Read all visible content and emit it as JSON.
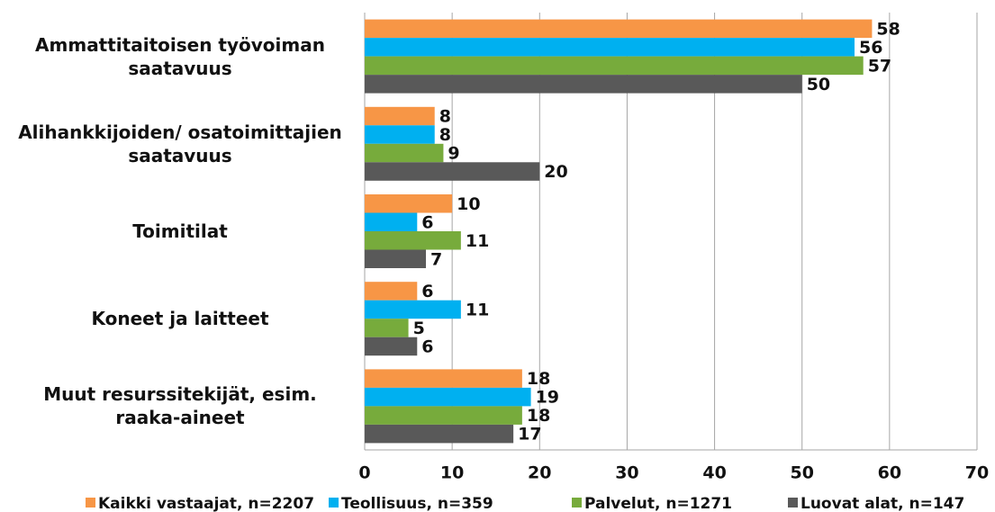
{
  "chart_data": {
    "type": "bar",
    "orientation": "horizontal",
    "categories": [
      "Ammattitaitoisen työvoiman saatavuus",
      "Alihankkijoiden/ osatoimittajien saatavuus",
      "Toimitilat",
      "Koneet ja laitteet",
      "Muut resurssitekijät, esim. raaka-aineet"
    ],
    "series": [
      {
        "name": "Kaikki vastaajat, n=2207",
        "color": "#f79646",
        "values": [
          58,
          8,
          10,
          6,
          18
        ]
      },
      {
        "name": "Teollisuus, n=359",
        "color": "#00b0f0",
        "values": [
          56,
          8,
          6,
          11,
          19
        ]
      },
      {
        "name": "Palvelut, n=1271",
        "color": "#77ab3c",
        "values": [
          57,
          9,
          11,
          5,
          18
        ]
      },
      {
        "name": "Luovat alat, n=147",
        "color": "#595959",
        "values": [
          50,
          20,
          7,
          6,
          17
        ]
      }
    ],
    "xlim": [
      0,
      70
    ],
    "xticks": [
      0,
      10,
      20,
      30,
      40,
      50,
      60,
      70
    ],
    "grid": true,
    "legend": "bottom"
  }
}
